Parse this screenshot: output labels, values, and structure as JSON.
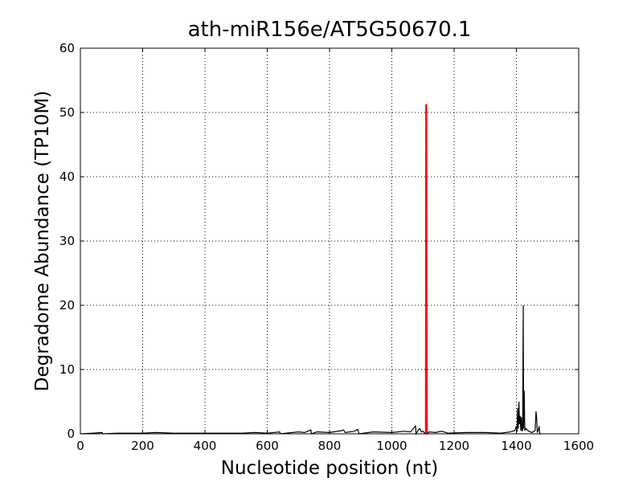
{
  "chart_data": {
    "type": "line",
    "title": "ath-miR156e/AT5G50670.1",
    "x_label": "Nucleotide position (nt)",
    "y_label": "Degradome Abundance (TP10M)",
    "xlim": [
      0,
      1600
    ],
    "xticks": [
      0,
      200,
      400,
      600,
      800,
      1000,
      1200,
      1400,
      1600
    ],
    "ylim": [
      0,
      60
    ],
    "yticks": [
      0,
      10,
      20,
      30,
      40,
      50,
      60
    ],
    "grid": true,
    "series": [
      {
        "color": "#000000",
        "x": [
          0,
          40,
          70,
          72,
          120,
          200,
          240,
          300,
          400,
          520,
          560,
          600,
          640,
          642,
          700,
          720,
          740,
          742,
          760,
          800,
          840,
          845,
          850,
          880,
          890,
          895,
          940,
          1000,
          1040,
          1060,
          1076,
          1078,
          1085,
          1090,
          1095,
          1100,
          1108,
          1114,
          1120,
          1140,
          1160,
          1180,
          1240,
          1300,
          1350,
          1380,
          1395,
          1400,
          1402,
          1404,
          1406,
          1408,
          1410,
          1412,
          1414,
          1416,
          1418,
          1420,
          1422,
          1423,
          1425,
          1427,
          1430,
          1440,
          1450,
          1460,
          1463,
          1465,
          1467,
          1470,
          1473,
          1475,
          1480
        ],
        "values": [
          0,
          0.1,
          0.2,
          0,
          0.1,
          0.1,
          0.2,
          0.1,
          0.1,
          0.1,
          0.2,
          0.1,
          0.3,
          0,
          0.3,
          0.2,
          0.6,
          0,
          0.3,
          0.2,
          0.5,
          0.6,
          0.2,
          0.4,
          0.7,
          0,
          0.3,
          0.2,
          0.4,
          0.3,
          1.2,
          0,
          0.6,
          0.8,
          0.3,
          0.4,
          0,
          0,
          0.3,
          0.2,
          0.4,
          0.1,
          0.2,
          0.2,
          0.1,
          0.3,
          0.5,
          1.2,
          0.3,
          4,
          0.8,
          5,
          1.5,
          2.8,
          0.5,
          2.6,
          0.4,
          0.6,
          20,
          0.8,
          6.7,
          0.5,
          0.8,
          0.4,
          0.2,
          0.5,
          3.5,
          2.4,
          0.3,
          0.5,
          1.2,
          0,
          0
        ]
      },
      {
        "color": "#ff0000",
        "x": [
          1109,
          1110,
          1111,
          1112,
          1113
        ],
        "values": [
          0,
          51,
          51.3,
          12,
          0
        ]
      }
    ]
  }
}
